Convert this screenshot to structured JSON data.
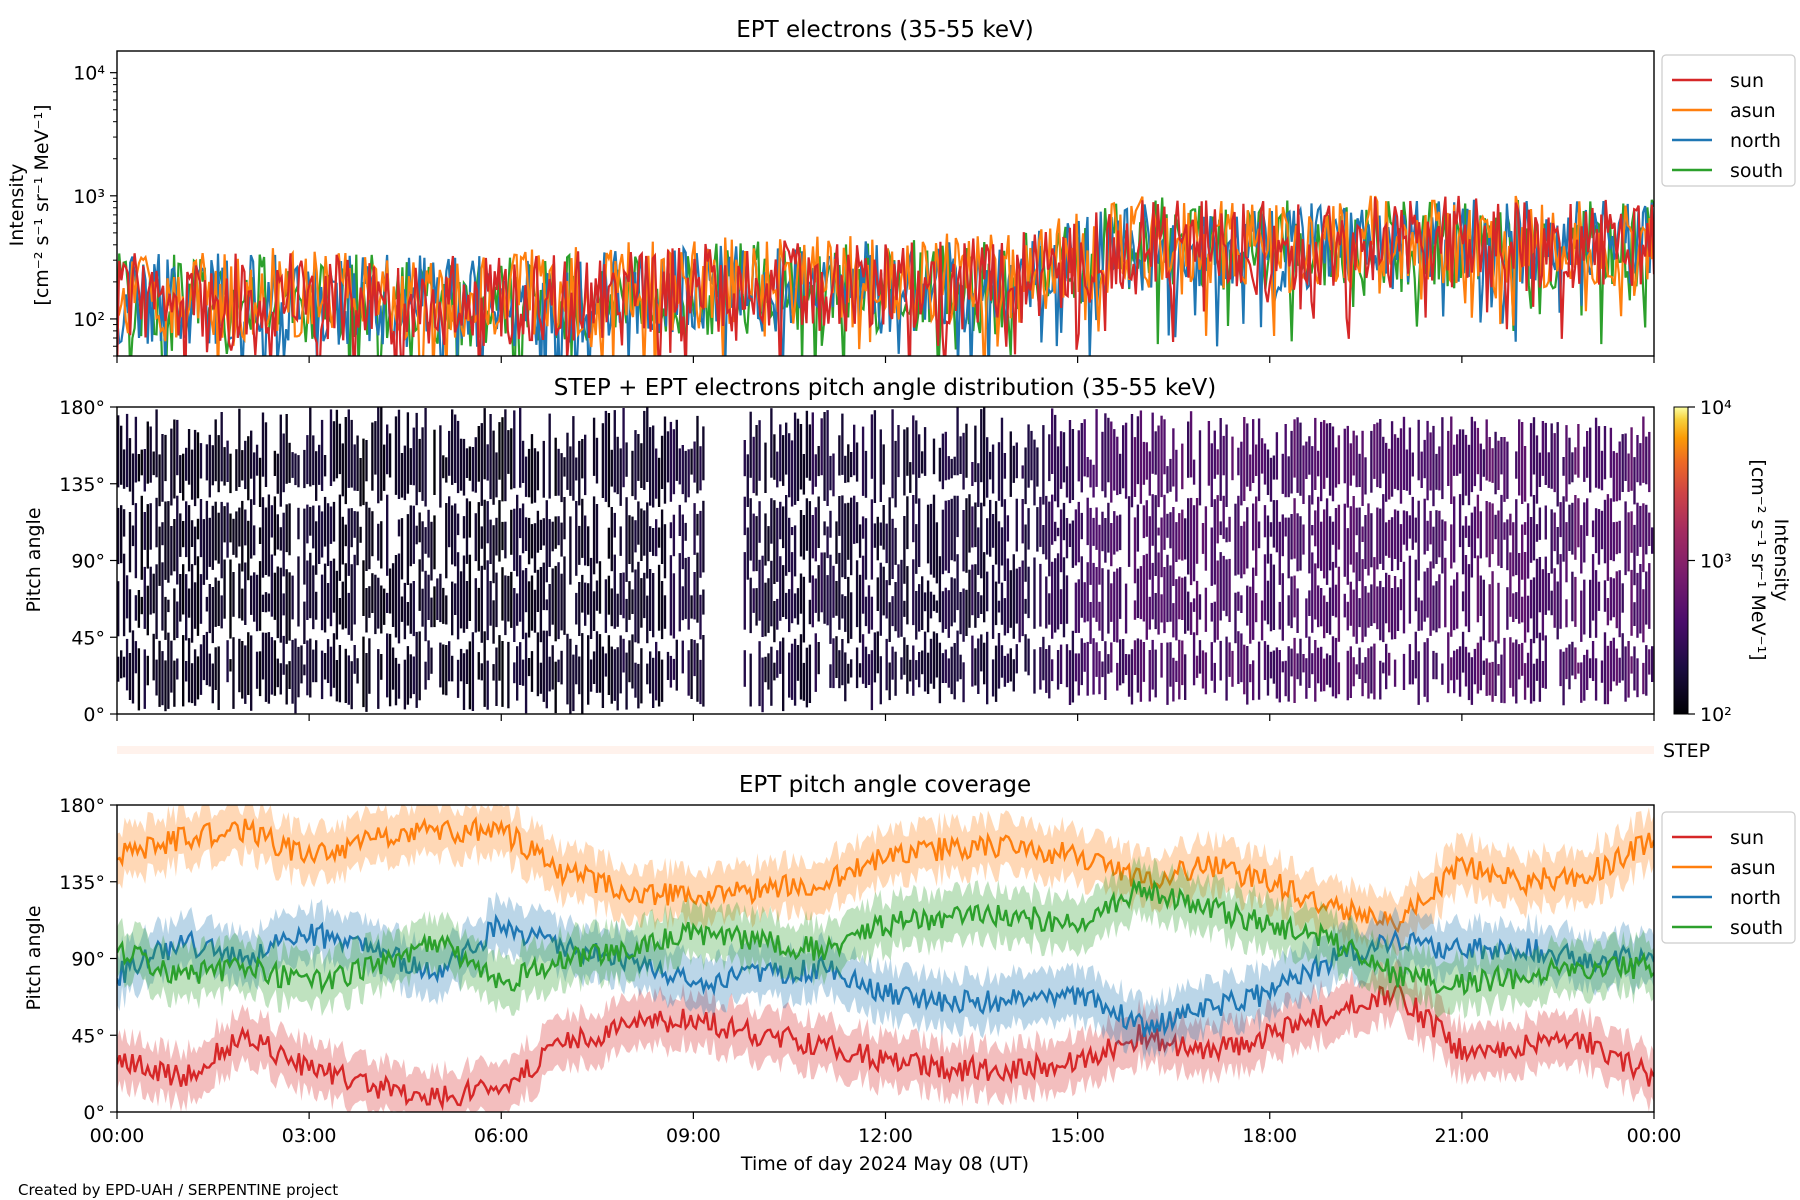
{
  "footer": "Created by EPD-UAH / SERPENTINE project",
  "colors": {
    "sun": "#d62728",
    "asun": "#ff7f0e",
    "north": "#1f77b4",
    "south": "#2ca02c",
    "step_band": "#fff2ec"
  },
  "chart_data": [
    {
      "type": "line",
      "title": "EPT electrons (35-55 keV)",
      "ylabel": "Intensity",
      "ylabel_unit": "[cm⁻² s⁻¹ sr⁻¹ MeV⁻¹]",
      "yscale": "log",
      "ylim": [
        50,
        15000
      ],
      "yticks": [
        {
          "value": 100,
          "label": "10²"
        },
        {
          "value": 1000,
          "label": "10³"
        },
        {
          "value": 10000,
          "label": "10⁴"
        }
      ],
      "x_hours": [
        0,
        1,
        2,
        3,
        4,
        5,
        6,
        7,
        8,
        9,
        10,
        11,
        12,
        13,
        14,
        15,
        16,
        17,
        18,
        19,
        20,
        21,
        22,
        23,
        24
      ],
      "legend_position": "right, top",
      "series": [
        {
          "name": "sun",
          "values": [
            150,
            140,
            150,
            150,
            140,
            140,
            140,
            150,
            160,
            170,
            180,
            190,
            180,
            190,
            200,
            300,
            420,
            400,
            400,
            420,
            420,
            420,
            420,
            420,
            420
          ]
        },
        {
          "name": "asun",
          "values": [
            170,
            150,
            160,
            160,
            150,
            150,
            150,
            170,
            180,
            190,
            200,
            200,
            200,
            210,
            220,
            320,
            430,
            410,
            420,
            430,
            430,
            430,
            430,
            430,
            420
          ]
        },
        {
          "name": "north",
          "values": [
            150,
            140,
            150,
            150,
            140,
            140,
            140,
            150,
            160,
            170,
            180,
            190,
            180,
            190,
            200,
            300,
            400,
            390,
            400,
            410,
            410,
            410,
            410,
            410,
            410
          ]
        },
        {
          "name": "south",
          "values": [
            150,
            140,
            150,
            150,
            140,
            140,
            140,
            150,
            160,
            170,
            180,
            190,
            180,
            190,
            200,
            310,
            420,
            400,
            400,
            420,
            420,
            420,
            420,
            420,
            420
          ]
        }
      ]
    },
    {
      "type": "heatmap",
      "title": "STEP + EPT electrons pitch angle distribution (35-55 keV)",
      "ylabel": "Pitch angle",
      "yticks": [
        "0°",
        "45°",
        "90°",
        "135°",
        "180°"
      ],
      "ylim": [
        0,
        180
      ],
      "colorbar": {
        "label": "Intensity",
        "unit": "[cm⁻² s⁻¹ sr⁻¹ MeV⁻¹]",
        "scale": "log",
        "range": [
          100,
          10000
        ],
        "ticks": [
          {
            "value": 100,
            "label": "10²"
          },
          {
            "value": 1000,
            "label": "10³"
          },
          {
            "value": 10000,
            "label": "10⁴"
          }
        ]
      },
      "intensity_by_hour": [
        150,
        140,
        150,
        150,
        140,
        140,
        140,
        150,
        160,
        170,
        180,
        190,
        180,
        190,
        200,
        300,
        420,
        400,
        400,
        420,
        420,
        420,
        420,
        420,
        420
      ],
      "step_label": "STEP"
    },
    {
      "type": "line",
      "title": "EPT pitch angle coverage",
      "ylabel": "Pitch angle",
      "xlabel": "Time of day 2024 May 08 (UT)",
      "yticks": [
        "0°",
        "45°",
        "90°",
        "135°",
        "180°"
      ],
      "ylim": [
        0,
        180
      ],
      "xticks": [
        "00:00",
        "03:00",
        "06:00",
        "09:00",
        "12:00",
        "15:00",
        "18:00",
        "21:00",
        "00:00"
      ],
      "x_hours": [
        0,
        1,
        2,
        3,
        4,
        5,
        6,
        7,
        8,
        9,
        10,
        11,
        12,
        13,
        14,
        15,
        16,
        17,
        18,
        19,
        20,
        21,
        22,
        23,
        24
      ],
      "legend_position": "right, top",
      "series": [
        {
          "name": "sun",
          "values": [
            30,
            20,
            45,
            25,
            15,
            8,
            15,
            40,
            50,
            55,
            45,
            40,
            30,
            25,
            25,
            30,
            45,
            35,
            45,
            60,
            70,
            35,
            40,
            40,
            20
          ]
        },
        {
          "name": "asun",
          "values": [
            150,
            160,
            165,
            150,
            160,
            165,
            165,
            140,
            130,
            125,
            130,
            135,
            150,
            155,
            155,
            150,
            135,
            145,
            135,
            120,
            110,
            145,
            135,
            140,
            160
          ]
        },
        {
          "name": "north",
          "values": [
            80,
            100,
            90,
            105,
            95,
            80,
            110,
            95,
            90,
            75,
            80,
            85,
            70,
            65,
            65,
            70,
            50,
            60,
            70,
            90,
            100,
            95,
            95,
            90,
            90
          ]
        },
        {
          "name": "south",
          "values": [
            95,
            80,
            85,
            75,
            85,
            100,
            75,
            90,
            95,
            105,
            100,
            95,
            110,
            115,
            115,
            110,
            130,
            120,
            110,
            100,
            80,
            75,
            80,
            85,
            85
          ]
        }
      ]
    }
  ]
}
